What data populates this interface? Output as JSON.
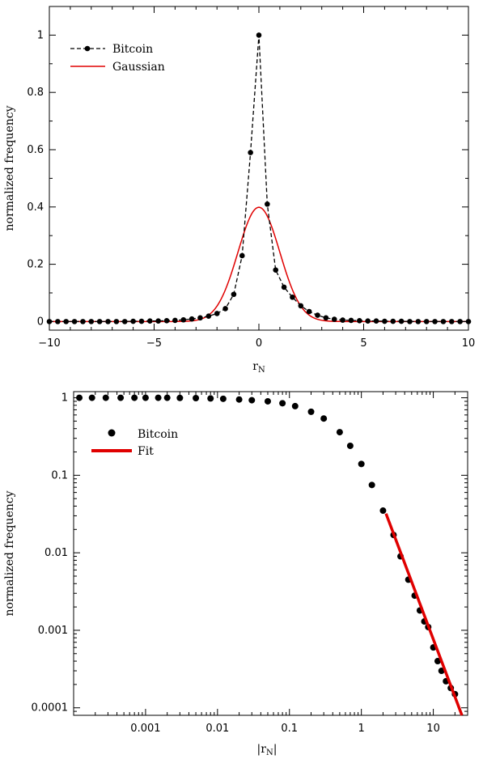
{
  "chart_data": [
    {
      "type": "line",
      "xlabel": "r_N",
      "xlabel_main": "r",
      "xlabel_sub": "N",
      "ylabel": "normalized frequency",
      "xlim": [
        -10,
        10
      ],
      "ylim": [
        -0.03,
        1.1
      ],
      "xticks": [
        -10,
        -5,
        0,
        5,
        10
      ],
      "xtick_labels": [
        "−10",
        "−5",
        "0",
        "5",
        "10"
      ],
      "yticks": [
        0,
        0.2,
        0.4,
        0.6,
        0.8,
        1
      ],
      "ytick_labels": [
        "0",
        "0.2",
        "0.4",
        "0.6",
        "0.8",
        "1"
      ],
      "grid": false,
      "legend_position": "top-left",
      "series": [
        {
          "name": "Bitcoin",
          "style": "dashed-line-with-markers",
          "color": "#000000",
          "x": [
            -10,
            -9.6,
            -9.2,
            -8.8,
            -8.4,
            -8.0,
            -7.6,
            -7.2,
            -6.8,
            -6.4,
            -6.0,
            -5.6,
            -5.2,
            -4.8,
            -4.4,
            -4.0,
            -3.6,
            -3.2,
            -2.8,
            -2.4,
            -2.0,
            -1.6,
            -1.2,
            -0.8,
            -0.4,
            0.0,
            0.4,
            0.8,
            1.2,
            1.6,
            2.0,
            2.4,
            2.8,
            3.2,
            3.6,
            4.0,
            4.4,
            4.8,
            5.2,
            5.6,
            6.0,
            6.4,
            6.8,
            7.2,
            7.6,
            8.0,
            8.4,
            8.8,
            9.2,
            9.6,
            10.0
          ],
          "y": [
            0.0,
            0.0,
            0.0,
            0.0,
            0.0,
            0.0,
            0.0,
            0.0,
            0.0,
            0.0,
            0.001,
            0.001,
            0.002,
            0.002,
            0.003,
            0.004,
            0.006,
            0.009,
            0.013,
            0.019,
            0.028,
            0.045,
            0.095,
            0.23,
            0.59,
            1.0,
            0.41,
            0.18,
            0.12,
            0.085,
            0.055,
            0.035,
            0.022,
            0.013,
            0.008,
            0.005,
            0.004,
            0.003,
            0.002,
            0.002,
            0.001,
            0.001,
            0.001,
            0.0,
            0.0,
            0.0,
            0.0,
            0.0,
            0.0,
            0.0,
            0.0
          ]
        },
        {
          "name": "Gaussian",
          "style": "solid-line",
          "color": "#e00000",
          "mean": 0,
          "sd": 1
        }
      ]
    },
    {
      "type": "scatter",
      "xlabel": "|r_N|",
      "xlabel_main": "|r",
      "xlabel_sub": "N",
      "xlabel_tail": "|",
      "ylabel": "normalized frequency",
      "xscale": "log",
      "yscale": "log",
      "xlim": [
        0.0001,
        30
      ],
      "ylim": [
        8e-05,
        1.2
      ],
      "xticks": [
        0.001,
        0.01,
        0.1,
        1,
        10
      ],
      "xtick_labels": [
        "0.001",
        "0.01",
        "0.1",
        "1",
        "10"
      ],
      "yticks": [
        0.0001,
        0.001,
        0.01,
        0.1,
        1
      ],
      "ytick_labels": [
        "0.0001",
        "0.001",
        "0.01",
        "0.1",
        "1"
      ],
      "grid": false,
      "legend_position": "top-left",
      "series": [
        {
          "name": "Bitcoin",
          "style": "markers",
          "color": "#000000",
          "x": [
            0.00012,
            0.00018,
            0.00028,
            0.00045,
            0.0007,
            0.001,
            0.0015,
            0.002,
            0.003,
            0.005,
            0.008,
            0.012,
            0.02,
            0.03,
            0.05,
            0.08,
            0.12,
            0.2,
            0.3,
            0.5,
            0.7,
            1.0,
            1.4,
            2.0,
            2.8,
            3.5,
            4.5,
            5.5,
            6.5,
            7.5,
            8.5,
            10.0,
            11.5,
            13.0,
            15.0,
            17.5,
            20.0
          ],
          "y": [
            1.0,
            1.0,
            1.0,
            1.0,
            1.0,
            1.0,
            1.0,
            1.0,
            0.995,
            0.99,
            0.98,
            0.97,
            0.95,
            0.93,
            0.9,
            0.85,
            0.78,
            0.66,
            0.54,
            0.36,
            0.24,
            0.14,
            0.075,
            0.035,
            0.017,
            0.009,
            0.0045,
            0.0028,
            0.0018,
            0.0013,
            0.0011,
            0.0006,
            0.0004,
            0.0003,
            0.00022,
            0.00018,
            0.00015
          ]
        },
        {
          "name": "Fit",
          "style": "thick-solid-line",
          "color": "#e00000",
          "x": [
            2.2,
            25
          ],
          "y": [
            0.032,
            8e-05
          ]
        }
      ]
    }
  ]
}
